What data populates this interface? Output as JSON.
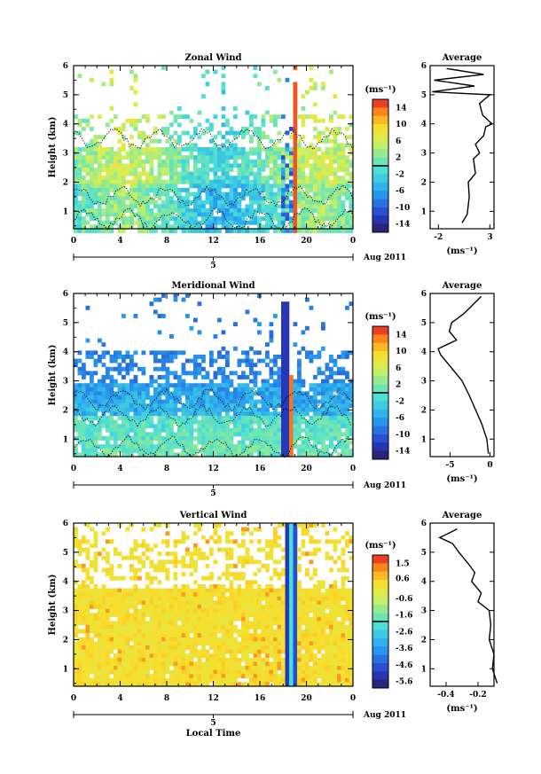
{
  "chart_data": [
    {
      "type": "heatmap",
      "title": "Zonal Wind",
      "ylabel": "Height (km)",
      "y_ticks": [
        "1",
        "2",
        "3",
        "4",
        "5",
        "6"
      ],
      "x_ticks": [
        "0",
        "4",
        "8",
        "12",
        "16",
        "20",
        "0"
      ],
      "xlim": [
        0,
        24
      ],
      "ylim": [
        0.4,
        6
      ],
      "date_tick": "5",
      "date_label": "Aug 2011",
      "colorbar": {
        "unit": "(ms⁻¹)",
        "ticks": [
          "14",
          "10",
          "6",
          "2",
          "-2",
          "-6",
          "-10",
          "-14"
        ],
        "range": [
          -16,
          16
        ]
      },
      "profile": {
        "title": "Average",
        "xlabel": "(ms⁻¹)",
        "x_ticks": [
          "-2",
          "3"
        ],
        "y_ticks": [
          "1",
          "2",
          "3",
          "4",
          "5",
          "6"
        ],
        "xlim": [
          -2.8,
          3.4
        ],
        "points": [
          [
            0.3,
            0.6
          ],
          [
            0.8,
            0.9
          ],
          [
            1.0,
            1.5
          ],
          [
            0.9,
            2.0
          ],
          [
            1.6,
            2.3
          ],
          [
            1.4,
            2.8
          ],
          [
            2.0,
            3.0
          ],
          [
            1.6,
            3.3
          ],
          [
            2.4,
            3.6
          ],
          [
            2.6,
            3.9
          ],
          [
            3.2,
            4.0
          ],
          [
            2.3,
            4.3
          ],
          [
            2.0,
            4.7
          ],
          [
            3.0,
            5.0
          ],
          [
            -2.6,
            5.1
          ],
          [
            1.5,
            5.3
          ],
          [
            -2.4,
            5.5
          ],
          [
            2.4,
            5.7
          ],
          [
            -1.2,
            5.9
          ]
        ]
      }
    },
    {
      "type": "heatmap",
      "title": "Meridional Wind",
      "ylabel": "Height (km)",
      "y_ticks": [
        "1",
        "2",
        "3",
        "4",
        "5",
        "6"
      ],
      "x_ticks": [
        "0",
        "4",
        "8",
        "12",
        "16",
        "20",
        "0"
      ],
      "xlim": [
        0,
        24
      ],
      "ylim": [
        0.4,
        6
      ],
      "date_tick": "5",
      "date_label": "Aug 2011",
      "colorbar": {
        "unit": "(ms⁻¹)",
        "ticks": [
          "14",
          "10",
          "6",
          "2",
          "-2",
          "-6",
          "-10",
          "-14"
        ],
        "range": [
          -16,
          16
        ]
      },
      "profile": {
        "title": "Average",
        "xlabel": "(ms⁻¹)",
        "x_ticks": [
          "-5",
          "0"
        ],
        "y_ticks": [
          "1",
          "2",
          "3",
          "4",
          "5",
          "6"
        ],
        "xlim": [
          -7.5,
          0.5
        ],
        "points": [
          [
            -0.2,
            0.5
          ],
          [
            -0.4,
            1.0
          ],
          [
            -1.0,
            1.5
          ],
          [
            -1.8,
            2.0
          ],
          [
            -2.6,
            2.5
          ],
          [
            -3.5,
            3.0
          ],
          [
            -5.0,
            3.5
          ],
          [
            -6.2,
            3.9
          ],
          [
            -6.5,
            4.1
          ],
          [
            -4.2,
            4.4
          ],
          [
            -5.1,
            4.7
          ],
          [
            -4.8,
            5.0
          ],
          [
            -3.3,
            5.3
          ],
          [
            -2.2,
            5.6
          ],
          [
            -1.1,
            5.9
          ]
        ]
      }
    },
    {
      "type": "heatmap",
      "title": "Vertical Wind",
      "ylabel": "Height (km)",
      "xlabel": "Local Time",
      "y_ticks": [
        "1",
        "2",
        "3",
        "4",
        "5",
        "6"
      ],
      "x_ticks": [
        "0",
        "4",
        "8",
        "12",
        "16",
        "20",
        "0"
      ],
      "xlim": [
        0,
        24
      ],
      "ylim": [
        0.4,
        6
      ],
      "date_tick": "5",
      "date_label": "Aug 2011",
      "colorbar": {
        "unit": "(ms⁻¹)",
        "ticks": [
          "1.5",
          "0.6",
          "-0.6",
          "-1.6",
          "-2.6",
          "-3.6",
          "-4.6",
          "-5.6"
        ],
        "range": [
          -6.0,
          2.0
        ]
      },
      "profile": {
        "title": "Average",
        "xlabel": "(ms⁻¹)",
        "x_ticks": [
          "-0.4",
          "-0.2"
        ],
        "y_ticks": [
          "1",
          "2",
          "3",
          "4",
          "5",
          "6"
        ],
        "xlim": [
          -0.5,
          -0.1
        ],
        "points": [
          [
            -0.08,
            0.5
          ],
          [
            -0.11,
            1.0
          ],
          [
            -0.1,
            1.5
          ],
          [
            -0.13,
            2.0
          ],
          [
            -0.12,
            2.5
          ],
          [
            -0.13,
            3.0
          ],
          [
            -0.2,
            3.3
          ],
          [
            -0.18,
            3.6
          ],
          [
            -0.24,
            4.0
          ],
          [
            -0.22,
            4.3
          ],
          [
            -0.26,
            4.6
          ],
          [
            -0.32,
            5.0
          ],
          [
            -0.36,
            5.3
          ],
          [
            -0.44,
            5.5
          ],
          [
            -0.33,
            5.8
          ]
        ]
      }
    }
  ]
}
